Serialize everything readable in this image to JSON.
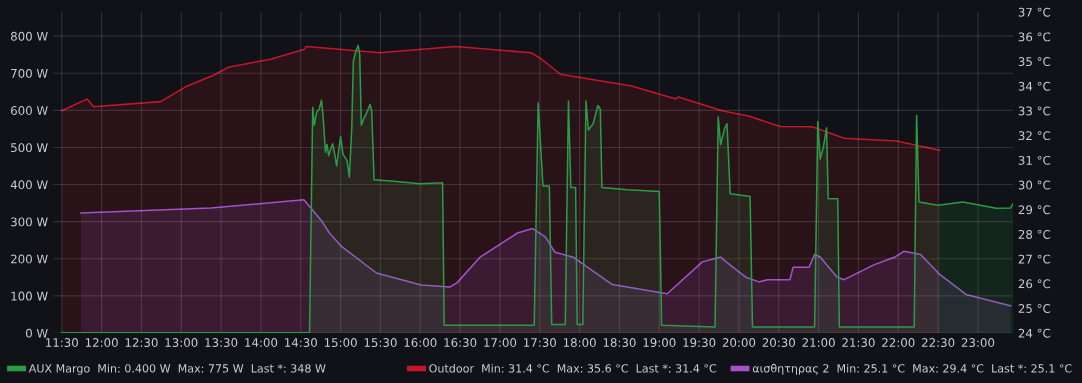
{
  "chart_data": {
    "type": "area",
    "xlim": [
      11.39,
      23.44
    ],
    "xticks": [
      {
        "value": 11.5,
        "label": "11:30"
      },
      {
        "value": 12,
        "label": "12:00"
      },
      {
        "value": 12.5,
        "label": "12:30"
      },
      {
        "value": 13,
        "label": "13:00"
      },
      {
        "value": 13.5,
        "label": "13:30"
      },
      {
        "value": 14,
        "label": "14:00"
      },
      {
        "value": 14.5,
        "label": "14:30"
      },
      {
        "value": 15,
        "label": "15:00"
      },
      {
        "value": 15.5,
        "label": "15:30"
      },
      {
        "value": 16,
        "label": "16:00"
      },
      {
        "value": 16.5,
        "label": "16:30"
      },
      {
        "value": 17,
        "label": "17:00"
      },
      {
        "value": 17.5,
        "label": "17:30"
      },
      {
        "value": 18,
        "label": "18:00"
      },
      {
        "value": 18.5,
        "label": "18:30"
      },
      {
        "value": 19,
        "label": "19:00"
      },
      {
        "value": 19.5,
        "label": "19:30"
      },
      {
        "value": 20,
        "label": "20:00"
      },
      {
        "value": 20.5,
        "label": "20:30"
      },
      {
        "value": 21,
        "label": "21:00"
      },
      {
        "value": 21.5,
        "label": "21:30"
      },
      {
        "value": 22,
        "label": "22:00"
      },
      {
        "value": 22.5,
        "label": "22:30"
      },
      {
        "value": 23,
        "label": "23:00"
      }
    ],
    "ylim": [
      0,
      865
    ],
    "yticks": [
      {
        "value": 0,
        "label": "0 W"
      },
      {
        "value": 100,
        "label": "100 W"
      },
      {
        "value": 200,
        "label": "200 W"
      },
      {
        "value": 300,
        "label": "300 W"
      },
      {
        "value": 400,
        "label": "400 W"
      },
      {
        "value": 500,
        "label": "500 W"
      },
      {
        "value": 600,
        "label": "600 W"
      },
      {
        "value": 700,
        "label": "700 W"
      },
      {
        "value": 800,
        "label": "800 W"
      }
    ],
    "y2lim": [
      24,
      37
    ],
    "y2ticks": [
      {
        "value": 24,
        "label": "24 °C"
      },
      {
        "value": 25,
        "label": "25 °C"
      },
      {
        "value": 26,
        "label": "26 °C"
      },
      {
        "value": 27,
        "label": "27 °C"
      },
      {
        "value": 28,
        "label": "28 °C"
      },
      {
        "value": 29,
        "label": "29 °C"
      },
      {
        "value": 30,
        "label": "30 °C"
      },
      {
        "value": 31,
        "label": "31 °C"
      },
      {
        "value": 32,
        "label": "32 °C"
      },
      {
        "value": 33,
        "label": "33 °C"
      },
      {
        "value": 34,
        "label": "34 °C"
      },
      {
        "value": 35,
        "label": "35 °C"
      },
      {
        "value": 36,
        "label": "36 °C"
      },
      {
        "value": 37,
        "label": "37 °C"
      }
    ],
    "grid": true,
    "legend": "bottom",
    "marker": "none",
    "line_style": "solid",
    "series": [
      {
        "name": "Outdoor  Min: 31.4 °C  Max: 35.6 °C  Last *: 31.4 °C",
        "color": "#c4162a",
        "axis": "y2",
        "x": [
          11.5,
          11.82,
          11.9,
          12.74,
          13.06,
          13.41,
          13.59,
          14.12,
          14.54,
          14.57,
          15.49,
          16.44,
          17.39,
          17.51,
          17.76,
          18.65,
          19.21,
          19.24,
          19.8,
          20.12,
          20.52,
          20.92,
          21.32,
          21.98,
          22.52
        ],
        "values": [
          33.0,
          33.48,
          33.16,
          33.37,
          33.98,
          34.45,
          34.76,
          35.09,
          35.48,
          35.6,
          35.35,
          35.6,
          35.35,
          35.12,
          34.48,
          34.0,
          33.48,
          33.56,
          32.99,
          32.79,
          32.36,
          32.35,
          31.89,
          31.78,
          31.4
        ]
      },
      {
        "name": "αισθητηρας 2  Min: 25.1 °C  Max: 29.4 °C  Last *: 25.1 °C",
        "color": "#a352cc",
        "axis": "y2",
        "x": [
          11.74,
          13.37,
          14.54,
          14.76,
          14.86,
          15.01,
          15.45,
          16.01,
          16.37,
          16.46,
          16.75,
          17.22,
          17.41,
          17.57,
          17.69,
          17.92,
          18.41,
          19.1,
          19.54,
          19.77,
          19.84,
          20.08,
          20.25,
          20.36,
          20.64,
          20.68,
          20.88,
          20.95,
          21.02,
          21.23,
          21.32,
          21.7,
          21.96,
          22.07,
          22.28,
          22.52,
          22.85,
          23.41
        ],
        "values": [
          28.86,
          29.06,
          29.4,
          28.55,
          28.05,
          27.51,
          26.43,
          25.94,
          25.86,
          26.03,
          27.07,
          28.05,
          28.23,
          27.89,
          27.27,
          27.07,
          25.96,
          25.59,
          26.88,
          27.08,
          26.88,
          26.27,
          26.07,
          26.16,
          26.16,
          26.66,
          26.66,
          27.18,
          27.08,
          26.27,
          26.16,
          26.77,
          27.08,
          27.31,
          27.18,
          26.37,
          25.56,
          25.1
        ]
      },
      {
        "name": "AUX Margo  Min: 0.400 W  Max: 775 W  Last *: 348 W",
        "color": "#299c46",
        "axis": "y",
        "x": [
          11.5,
          14.61,
          14.65,
          14.67,
          14.7,
          14.73,
          14.76,
          14.78,
          14.81,
          14.83,
          14.85,
          14.9,
          14.93,
          14.95,
          15.0,
          15.03,
          15.08,
          15.11,
          15.14,
          15.16,
          15.19,
          15.22,
          15.24,
          15.26,
          15.29,
          15.33,
          15.37,
          15.39,
          15.42,
          15.7,
          16.0,
          16.28,
          16.3,
          17.43,
          17.48,
          17.54,
          17.62,
          17.65,
          17.82,
          17.86,
          17.89,
          17.95,
          17.97,
          18.04,
          18.08,
          18.11,
          18.17,
          18.23,
          18.26,
          18.28,
          18.6,
          19.0,
          19.03,
          19.7,
          19.74,
          19.77,
          19.82,
          19.85,
          19.89,
          20.14,
          20.17,
          20.95,
          20.99,
          21.02,
          21.06,
          21.1,
          21.12,
          21.24,
          21.26,
          22.2,
          22.23,
          22.26,
          22.5,
          22.81,
          23.23,
          23.41,
          23.44
        ],
        "values": [
          0.4,
          0.4,
          608,
          560,
          595,
          603,
          627,
          586,
          487,
          508,
          478,
          510,
          478,
          450,
          530,
          482,
          465,
          420,
          551,
          733,
          758,
          775,
          750,
          560,
          577,
          595,
          616,
          599,
          413,
          408,
          402,
          405,
          21,
          21,
          620,
          396,
          396,
          23,
          23,
          625,
          392,
          392,
          23,
          23,
          625,
          547,
          564,
          613,
          603,
          392,
          386,
          381,
          21,
          16,
          582,
          508,
          551,
          564,
          375,
          368,
          16,
          16,
          570,
          469,
          501,
          553,
          362,
          362,
          16,
          16,
          586,
          353,
          344,
          353,
          336,
          337,
          348
        ]
      }
    ]
  }
}
